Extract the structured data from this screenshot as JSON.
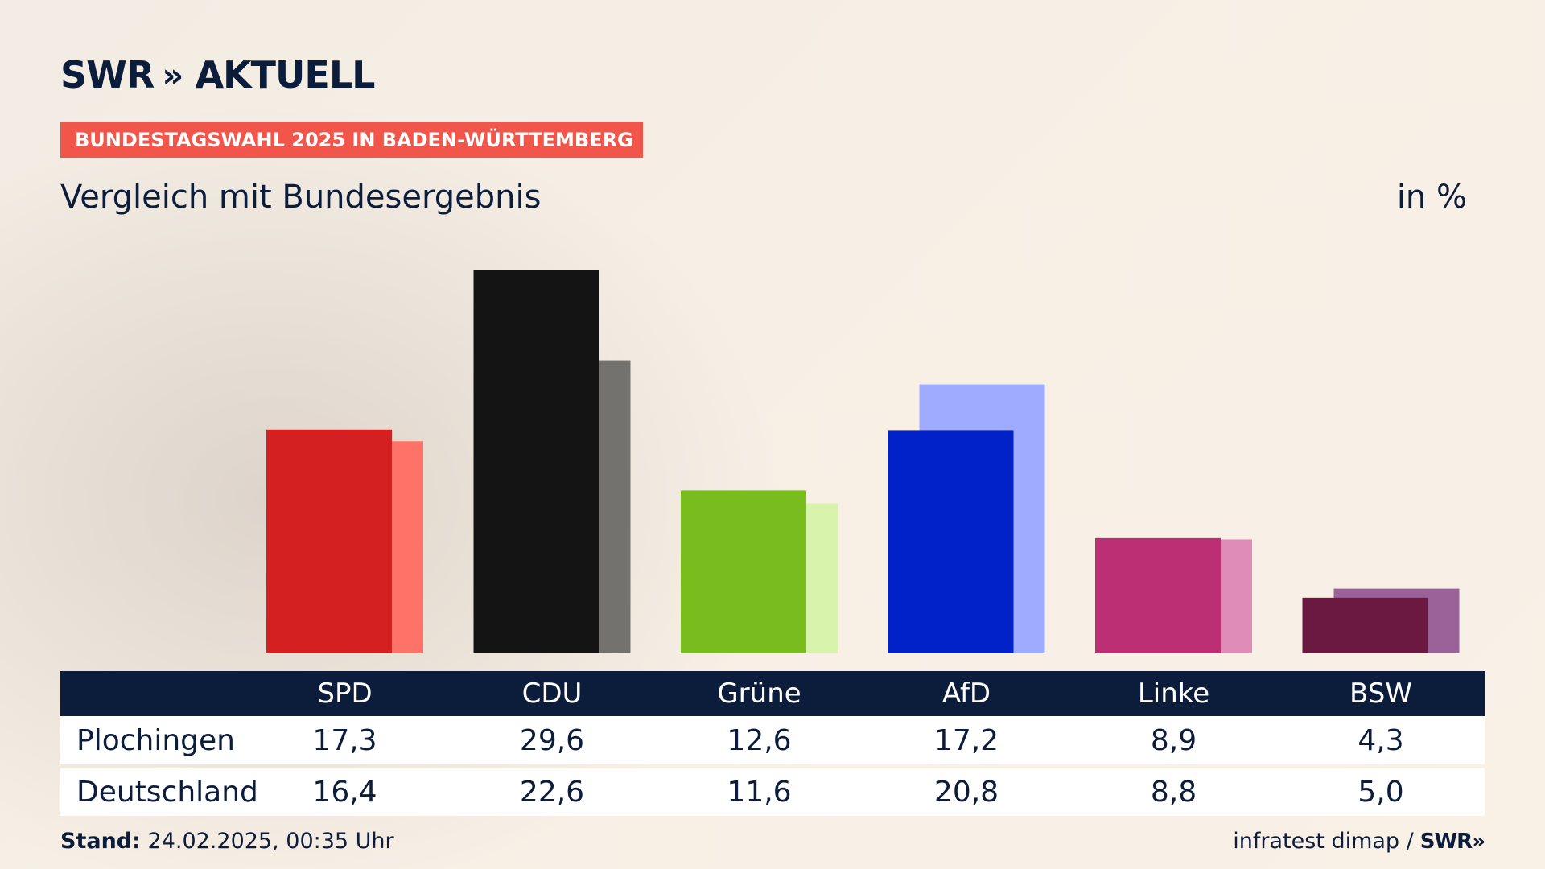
{
  "brand": {
    "name": "SWR",
    "chevrons": "»",
    "product": "AKTUELL"
  },
  "banner": "BUNDESTAGSWAHL 2025 IN BADEN-WÜRTTEMBERG",
  "subtitle": "Vergleich mit Bundesergebnis",
  "unit": "in %",
  "table": {
    "rows": [
      {
        "label": "Plochingen"
      },
      {
        "label": "Deutschland"
      }
    ]
  },
  "footer": {
    "stand_label": "Stand:",
    "stand_value": "24.02.2025, 00:35 Uhr",
    "source": "infratest dimap /",
    "source_logo": "SWR",
    "source_logo_chevrons": "»"
  },
  "chart_data": {
    "type": "bar",
    "categories": [
      "SPD",
      "CDU",
      "Grüne",
      "AfD",
      "Linke",
      "BSW"
    ],
    "series": [
      {
        "name": "Plochingen",
        "values": [
          17.3,
          29.6,
          12.6,
          17.2,
          8.9,
          4.3
        ],
        "labels": [
          "17,3",
          "29,6",
          "12,6",
          "17,2",
          "8,9",
          "4,3"
        ]
      },
      {
        "name": "Deutschland",
        "values": [
          16.4,
          22.6,
          11.6,
          20.8,
          8.8,
          5.0
        ],
        "labels": [
          "16,4",
          "22,6",
          "11,6",
          "20,8",
          "8,8",
          "5,0"
        ]
      }
    ],
    "colors_primary": [
      "#d42020",
      "#141414",
      "#78bc1e",
      "#0022c8",
      "#bd2f74",
      "#6b1941"
    ],
    "colors_secondary": [
      "#ff7268",
      "#74726f",
      "#d8f4ac",
      "#9eabfe",
      "#e08cb8",
      "#9a6298"
    ],
    "ylim": [
      0,
      29.6
    ]
  }
}
